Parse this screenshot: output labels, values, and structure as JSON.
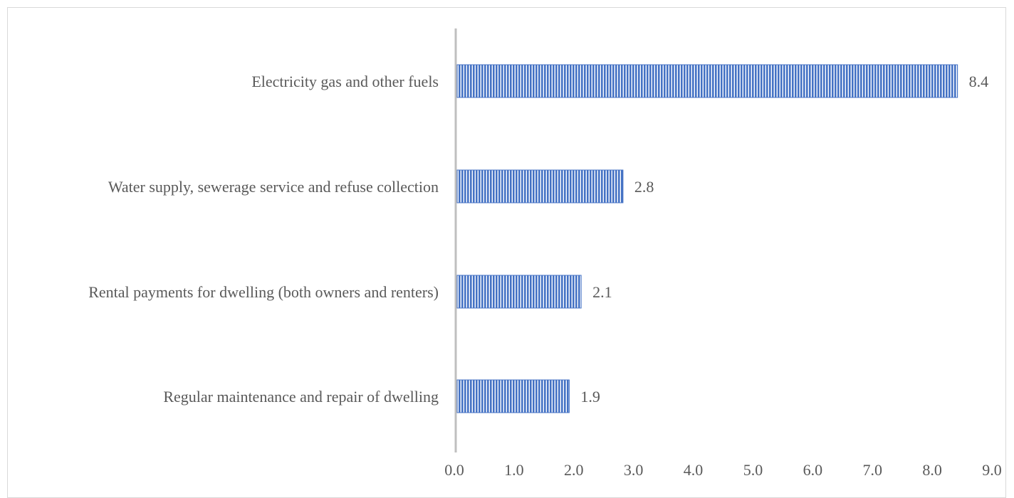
{
  "chart_data": {
    "type": "bar",
    "orientation": "horizontal",
    "title": "",
    "xlabel": "",
    "ylabel": "",
    "categories": [
      "Electricity gas and other fuels",
      "Water supply, sewerage service and refuse collection",
      "Rental payments for dwelling (both owners and renters)",
      "Regular maintenance and repair of dwelling"
    ],
    "values": [
      8.4,
      2.8,
      2.1,
      1.9
    ],
    "data_labels": [
      "8.4",
      "2.8",
      "2.1",
      "1.9"
    ],
    "xlim": [
      0,
      9
    ],
    "x_ticks": [
      "0.0",
      "1.0",
      "2.0",
      "3.0",
      "4.0",
      "5.0",
      "6.0",
      "7.0",
      "8.0",
      "9.0"
    ],
    "grid": false,
    "legend": "none",
    "colors": {
      "bar_fill": "#4472c4",
      "bar_stripe": "#ffffff",
      "axis": "#bfbfbf",
      "text": "#595959"
    }
  }
}
